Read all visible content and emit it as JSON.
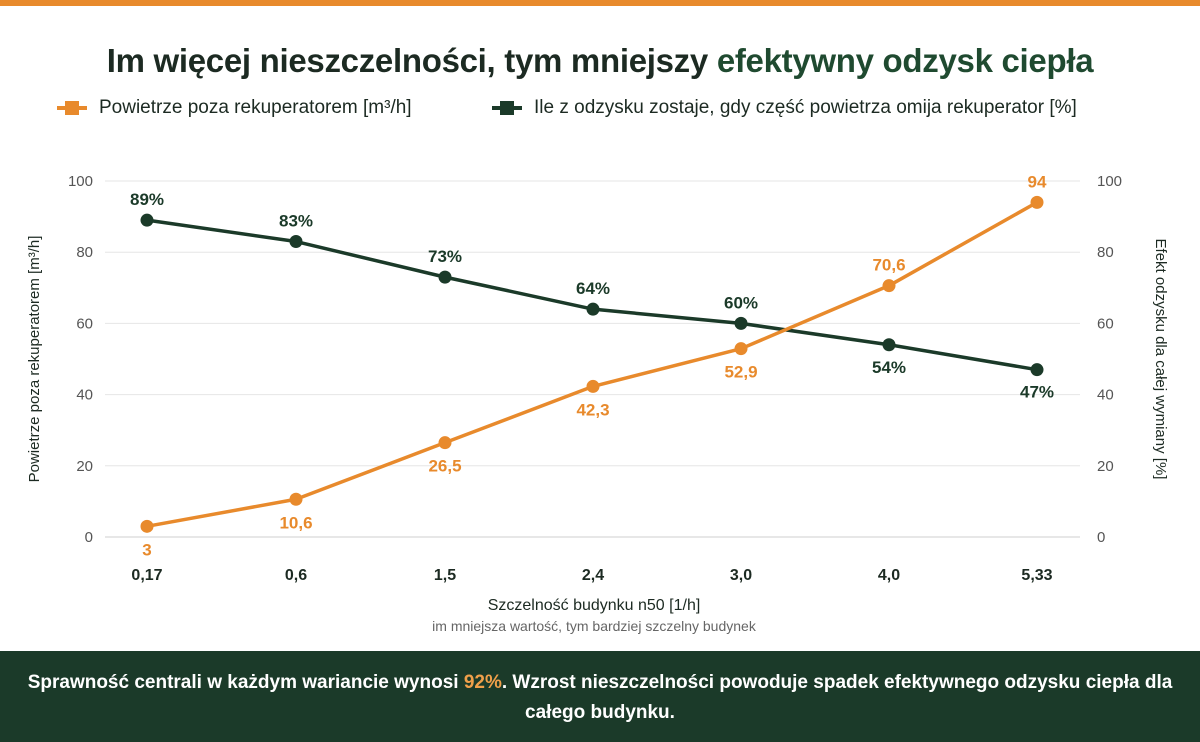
{
  "title": {
    "part1": "Im więcej nieszczelności, tym mniejszy ",
    "highlight": "efektywny odzysk ciepła"
  },
  "colors": {
    "orange": "#e88a2c",
    "dark_green": "#1b3a29",
    "title_green": "#1f4a30",
    "text": "#1c2a22",
    "grid": "#e6e6e6"
  },
  "chart_data": {
    "type": "line",
    "categories": [
      "0,17",
      "0,6",
      "1,5",
      "2,4",
      "3,0",
      "4,0",
      "5,33"
    ],
    "series": [
      {
        "name": "Powietrze poza rekuperatorem [m³/h]",
        "axis": "left",
        "color": "#e88a2c",
        "marker": "circle",
        "values": [
          3,
          10.6,
          26.5,
          42.3,
          52.9,
          70.6,
          94
        ],
        "labels": [
          "3",
          "10,6",
          "26,5",
          "42,3",
          "52,9",
          "70,6",
          "94"
        ]
      },
      {
        "name": "Ile z odzysku zostaje, gdy część powietrza omija rekuperator [%]",
        "axis": "right",
        "color": "#1b3a29",
        "marker": "circle",
        "values": [
          89,
          83,
          73,
          64,
          60,
          54,
          47
        ],
        "labels": [
          "89%",
          "83%",
          "73%",
          "64%",
          "60%",
          "54%",
          "47%"
        ]
      }
    ],
    "ylim_left": [
      0,
      100
    ],
    "ylim_right": [
      0,
      100
    ],
    "yticks": [
      "0",
      "20",
      "40",
      "60",
      "80",
      "100"
    ],
    "ytick_values": [
      0,
      20,
      40,
      60,
      80,
      100
    ],
    "ylabel_left": "Powietrze poza rekuperatorem [m³/h]",
    "ylabel_right": "Efekt odzysku dla całej wymiany [%]",
    "xlabel": "Szczelność budynku n50 [1/h]",
    "xsublabel": "im mniejsza wartość, tym bardziej szczelny budynek",
    "grid": true,
    "legend_position": "top"
  },
  "footer": {
    "text_before": "Sprawność centrali w każdym wariancie wynosi ",
    "highlight": "92%",
    "text_after": ". Wzrost nieszczelności powoduje spadek efektywnego odzysku ciepła dla całego budynku."
  }
}
